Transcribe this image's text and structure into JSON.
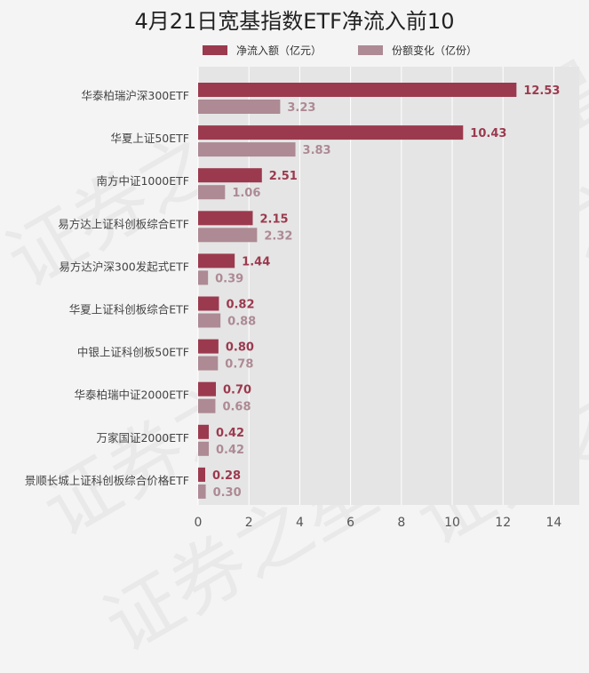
{
  "chart_data": {
    "type": "bar",
    "orientation": "horizontal",
    "title": "4月21日宽基指数ETF净流入前10",
    "categories": [
      "华泰柏瑞沪深300ETF",
      "华夏上证50ETF",
      "南方中证1000ETF",
      "易方达上证科创板综合ETF",
      "易方达沪深300发起式ETF",
      "华夏上证科创板综合ETF",
      "中银上证科创板50ETF",
      "华泰柏瑞中证2000ETF",
      "万家国证2000ETF",
      "景顺长城上证科创板综合价格ETF"
    ],
    "series": [
      {
        "name": "净流入额（亿元）",
        "color": "#9b3a4e",
        "values": [
          12.53,
          10.43,
          2.51,
          2.15,
          1.44,
          0.82,
          0.8,
          0.7,
          0.42,
          0.28
        ],
        "labels": [
          "12.53",
          "10.43",
          "2.51",
          "2.15",
          "1.44",
          "0.82",
          "0.80",
          "0.70",
          "0.42",
          "0.28"
        ]
      },
      {
        "name": "份额变化（亿份）",
        "color": "#ad8a94",
        "values": [
          3.23,
          3.83,
          1.06,
          2.32,
          0.39,
          0.88,
          0.78,
          0.68,
          0.42,
          0.3
        ],
        "labels": [
          "3.23",
          "3.83",
          "1.06",
          "2.32",
          "0.39",
          "0.88",
          "0.78",
          "0.68",
          "0.42",
          "0.30"
        ]
      }
    ],
    "xlim": [
      0,
      15
    ],
    "xticks": [
      0,
      2,
      4,
      6,
      8,
      10,
      12,
      14
    ],
    "grid": true,
    "legend": "top"
  },
  "watermark": {
    "text": "证券之星"
  }
}
